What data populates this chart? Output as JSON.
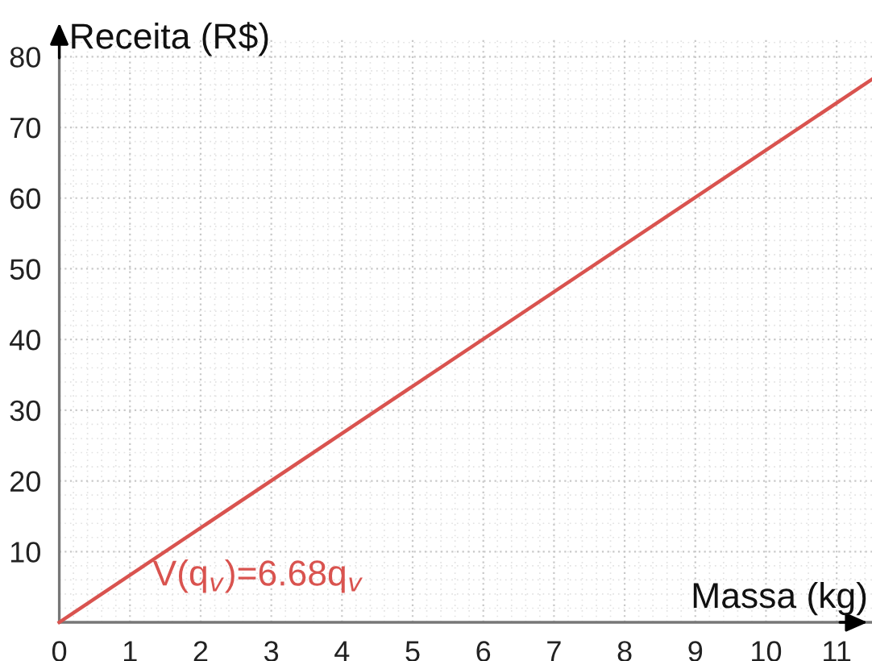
{
  "chart_data": {
    "type": "line",
    "xlabel": "Massa (kg)",
    "ylabel": "Receita (R$)",
    "x": [
      0,
      11.5
    ],
    "series": [
      {
        "color": "#d9534f",
        "values": [
          0,
          76.8
        ]
      }
    ],
    "annotations": [
      "V(q$_{v}$)=6.68q$_{v}$"
    ],
    "xlim": [
      0,
      11.5
    ],
    "ylim": [
      0,
      82.5
    ],
    "xticks": [
      0,
      1,
      2,
      3,
      4,
      5,
      6,
      7,
      8,
      9,
      10,
      11
    ],
    "yticks": [
      {
        "value": 0,
        "label": null
      },
      10,
      20,
      30,
      40,
      50,
      60,
      70,
      80
    ],
    "grid": true,
    "line_style": "solid",
    "marker": "none"
  }
}
